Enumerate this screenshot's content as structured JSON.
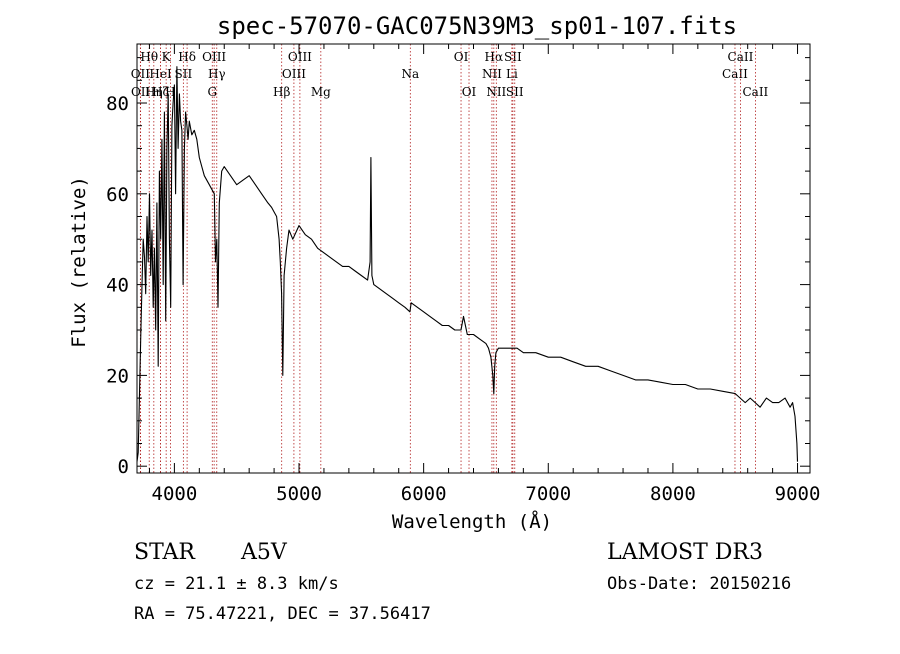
{
  "chart_data": {
    "type": "line",
    "title": "spec-57070-GAC075N39M3_sp01-107.fits",
    "xlabel": "Wavelength (Å)",
    "ylabel": "Flux (relative)",
    "xlim": [
      3700,
      9100
    ],
    "ylim": [
      -1.5,
      93
    ],
    "xticks": [
      4000,
      5000,
      6000,
      7000,
      8000,
      9000
    ],
    "yticks": [
      0,
      20,
      40,
      60,
      80
    ],
    "grid": false,
    "series": [
      {
        "name": "spectrum",
        "x": [
          3700,
          3710,
          3720,
          3730,
          3740,
          3750,
          3760,
          3770,
          3780,
          3790,
          3800,
          3810,
          3820,
          3830,
          3840,
          3850,
          3860,
          3870,
          3880,
          3890,
          3900,
          3910,
          3920,
          3930,
          3940,
          3950,
          3960,
          3970,
          3980,
          3990,
          4000,
          4010,
          4020,
          4030,
          4040,
          4050,
          4060,
          4070,
          4080,
          4090,
          4100,
          4110,
          4120,
          4140,
          4160,
          4180,
          4200,
          4220,
          4240,
          4260,
          4280,
          4300,
          4320,
          4330,
          4340,
          4350,
          4360,
          4380,
          4400,
          4450,
          4500,
          4550,
          4600,
          4650,
          4700,
          4750,
          4780,
          4800,
          4820,
          4840,
          4850,
          4860,
          4870,
          4880,
          4900,
          4920,
          4950,
          5000,
          5050,
          5100,
          5150,
          5200,
          5250,
          5300,
          5350,
          5400,
          5450,
          5500,
          5550,
          5570,
          5577,
          5585,
          5600,
          5650,
          5700,
          5750,
          5800,
          5850,
          5890,
          5900,
          5950,
          6000,
          6050,
          6100,
          6150,
          6200,
          6250,
          6300,
          6320,
          6350,
          6400,
          6450,
          6500,
          6520,
          6540,
          6555,
          6563,
          6570,
          6580,
          6600,
          6650,
          6700,
          6750,
          6800,
          6900,
          7000,
          7100,
          7200,
          7300,
          7400,
          7500,
          7600,
          7700,
          7800,
          7900,
          8000,
          8100,
          8200,
          8300,
          8400,
          8500,
          8540,
          8580,
          8620,
          8660,
          8700,
          8750,
          8800,
          8850,
          8900,
          8940,
          8960,
          8980,
          8995,
          9000
        ],
        "y": [
          1,
          3,
          16,
          28,
          40,
          50,
          46,
          38,
          55,
          45,
          60,
          42,
          52,
          35,
          48,
          30,
          58,
          22,
          65,
          50,
          72,
          40,
          78,
          32,
          70,
          82,
          50,
          35,
          75,
          80,
          84,
          60,
          88,
          70,
          82,
          76,
          74,
          40,
          70,
          78,
          75,
          72,
          76,
          73,
          74,
          72,
          68,
          66,
          64,
          63,
          62,
          61,
          60,
          45,
          50,
          35,
          58,
          65,
          66,
          64,
          62,
          63,
          64,
          62,
          60,
          58,
          57,
          56,
          55,
          50,
          45,
          38,
          20,
          42,
          48,
          52,
          50,
          53,
          51,
          50,
          48,
          47,
          46,
          45,
          44,
          44,
          43,
          42,
          41,
          45,
          68,
          42,
          40,
          39,
          38,
          37,
          36,
          35,
          34,
          36,
          35,
          34,
          33,
          32,
          31,
          31,
          30,
          30,
          33,
          29,
          29,
          28,
          27,
          26,
          24,
          20,
          16,
          22,
          25,
          26,
          26,
          26,
          26,
          25,
          25,
          24,
          24,
          23,
          22,
          22,
          21,
          20,
          19,
          19,
          18.5,
          18,
          18,
          17,
          17,
          16.5,
          16,
          15,
          14,
          15,
          14,
          13,
          15,
          14,
          14,
          15,
          13,
          14,
          11,
          5,
          1
        ]
      }
    ],
    "lines": [
      {
        "name": "OII",
        "x": 3727,
        "row": 2
      },
      {
        "name": "OII",
        "x": 3729,
        "row": 3
      },
      {
        "name": "Hθ",
        "x": 3798,
        "row": 1
      },
      {
        "name": "Hη",
        "x": 3835,
        "row": 3
      },
      {
        "name": "HeI",
        "x": 3889,
        "row": 2
      },
      {
        "name": "Hζ",
        "x": 3889,
        "row": 3
      },
      {
        "name": "K",
        "x": 3934,
        "row": 1
      },
      {
        "name": "H",
        "x": 3968,
        "row": 3
      },
      {
        "name": "SII",
        "x": 4072,
        "row": 2
      },
      {
        "name": "Hδ",
        "x": 4102,
        "row": 1
      },
      {
        "name": "OIII",
        "x": 4319,
        "row": 1
      },
      {
        "name": "Hγ",
        "x": 4340,
        "row": 2
      },
      {
        "name": "G",
        "x": 4304,
        "row": 3
      },
      {
        "name": "Hβ",
        "x": 4861,
        "row": 3
      },
      {
        "name": "OIII",
        "x": 4959,
        "row": 2
      },
      {
        "name": "OIII",
        "x": 5007,
        "row": 1
      },
      {
        "name": "Mg",
        "x": 5175,
        "row": 3
      },
      {
        "name": "Na",
        "x": 5893,
        "row": 2
      },
      {
        "name": "OI",
        "x": 6300,
        "row": 1
      },
      {
        "name": "OI",
        "x": 6364,
        "row": 3
      },
      {
        "name": "NII",
        "x": 6548,
        "row": 2
      },
      {
        "name": "Hα",
        "x": 6563,
        "row": 1
      },
      {
        "name": "NII",
        "x": 6583,
        "row": 3
      },
      {
        "name": "Li",
        "x": 6708,
        "row": 2
      },
      {
        "name": "SII",
        "x": 6716,
        "row": 1
      },
      {
        "name": "SII",
        "x": 6731,
        "row": 3
      },
      {
        "name": "CaII",
        "x": 8498,
        "row": 2
      },
      {
        "name": "CaII",
        "x": 8542,
        "row": 1
      },
      {
        "name": "CaII",
        "x": 8662,
        "row": 3
      }
    ]
  },
  "info": {
    "class": "STAR",
    "subclass": "A5V",
    "survey": "LAMOST DR3",
    "redshift": "cz = 21.1 ± 8.3 km/s",
    "obs_date": "Obs-Date: 20150216",
    "coords": "RA =  75.47221, DEC =  37.56417"
  },
  "colors": {
    "spectrum": "#000000",
    "line_marker": "#b22222",
    "axis": "#000000"
  }
}
